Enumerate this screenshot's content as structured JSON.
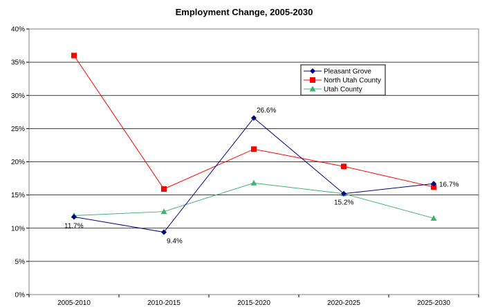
{
  "chart_data": {
    "type": "line",
    "title": "Employment Change, 2005-2030",
    "xlabel": "",
    "ylabel": "",
    "categories": [
      "2005-2010",
      "2010-2015",
      "2015-2020",
      "2020-2025",
      "2025-2030"
    ],
    "ylim": [
      0,
      40
    ],
    "yticks": [
      "0%",
      "5%",
      "10%",
      "15%",
      "20%",
      "25%",
      "30%",
      "35%",
      "40%"
    ],
    "grid": true,
    "legend": "top-right",
    "series": [
      {
        "name": "Pleasant Grove",
        "values": [
          11.7,
          9.4,
          26.6,
          15.2,
          16.7
        ],
        "color": "#000080",
        "marker": "diamond",
        "labels": [
          "11.7%",
          "9.4%",
          "26.6%",
          "15.2%",
          "16.7%"
        ]
      },
      {
        "name": "North Utah County",
        "values": [
          36.0,
          15.9,
          21.9,
          19.3,
          16.2
        ],
        "color": "#ff0000",
        "marker": "square"
      },
      {
        "name": "Utah County",
        "values": [
          11.9,
          12.5,
          16.8,
          15.2,
          11.5
        ],
        "color": "#3cb371",
        "marker": "triangle"
      }
    ]
  }
}
